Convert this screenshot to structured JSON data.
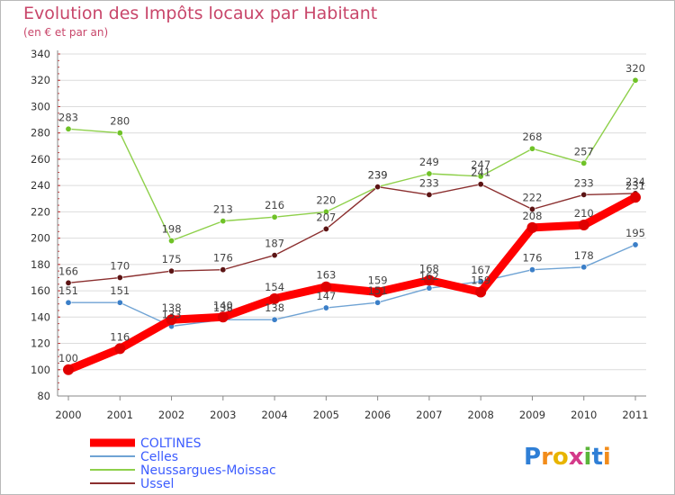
{
  "header": {
    "title": "Evolution des Impôts locaux par Habitant",
    "subtitle": "(en € et par an)"
  },
  "logo": {
    "text": "Proxiti"
  },
  "chart_data": {
    "type": "line",
    "title": "Evolution des Impôts locaux par Habitant",
    "subtitle": "(en € et par an)",
    "xlabel": "",
    "ylabel": "",
    "categories": [
      "2000",
      "2001",
      "2002",
      "2003",
      "2004",
      "2005",
      "2006",
      "2007",
      "2008",
      "2009",
      "2010",
      "2011"
    ],
    "ylim": [
      80,
      340
    ],
    "yticks": [
      80,
      100,
      120,
      140,
      160,
      180,
      200,
      220,
      240,
      260,
      280,
      300,
      320,
      340
    ],
    "grid": "horizontal",
    "legend_position": "bottom-left",
    "series": [
      {
        "name": "COLTINES",
        "color": "#ff0000",
        "marker_color": "#e00000",
        "emphasis": "thick",
        "values": [
          100,
          116,
          138,
          140,
          154,
          163,
          159,
          168,
          159,
          208,
          210,
          231
        ]
      },
      {
        "name": "Celles",
        "color": "#6fa3d4",
        "marker_color": "#3b7fc8",
        "emphasis": "thin",
        "values": [
          151,
          151,
          133,
          138,
          138,
          147,
          151,
          162,
          167,
          176,
          178,
          195
        ]
      },
      {
        "name": "Neussargues-Moissac",
        "color": "#8ed04a",
        "marker_color": "#6fc227",
        "emphasis": "thin",
        "values": [
          283,
          280,
          198,
          213,
          216,
          220,
          239,
          249,
          247,
          268,
          257,
          320
        ]
      },
      {
        "name": "Ussel",
        "color": "#8b2f2f",
        "marker_color": "#5c1414",
        "emphasis": "thin",
        "values": [
          166,
          170,
          175,
          176,
          187,
          207,
          239,
          233,
          241,
          222,
          233,
          234
        ]
      }
    ]
  }
}
